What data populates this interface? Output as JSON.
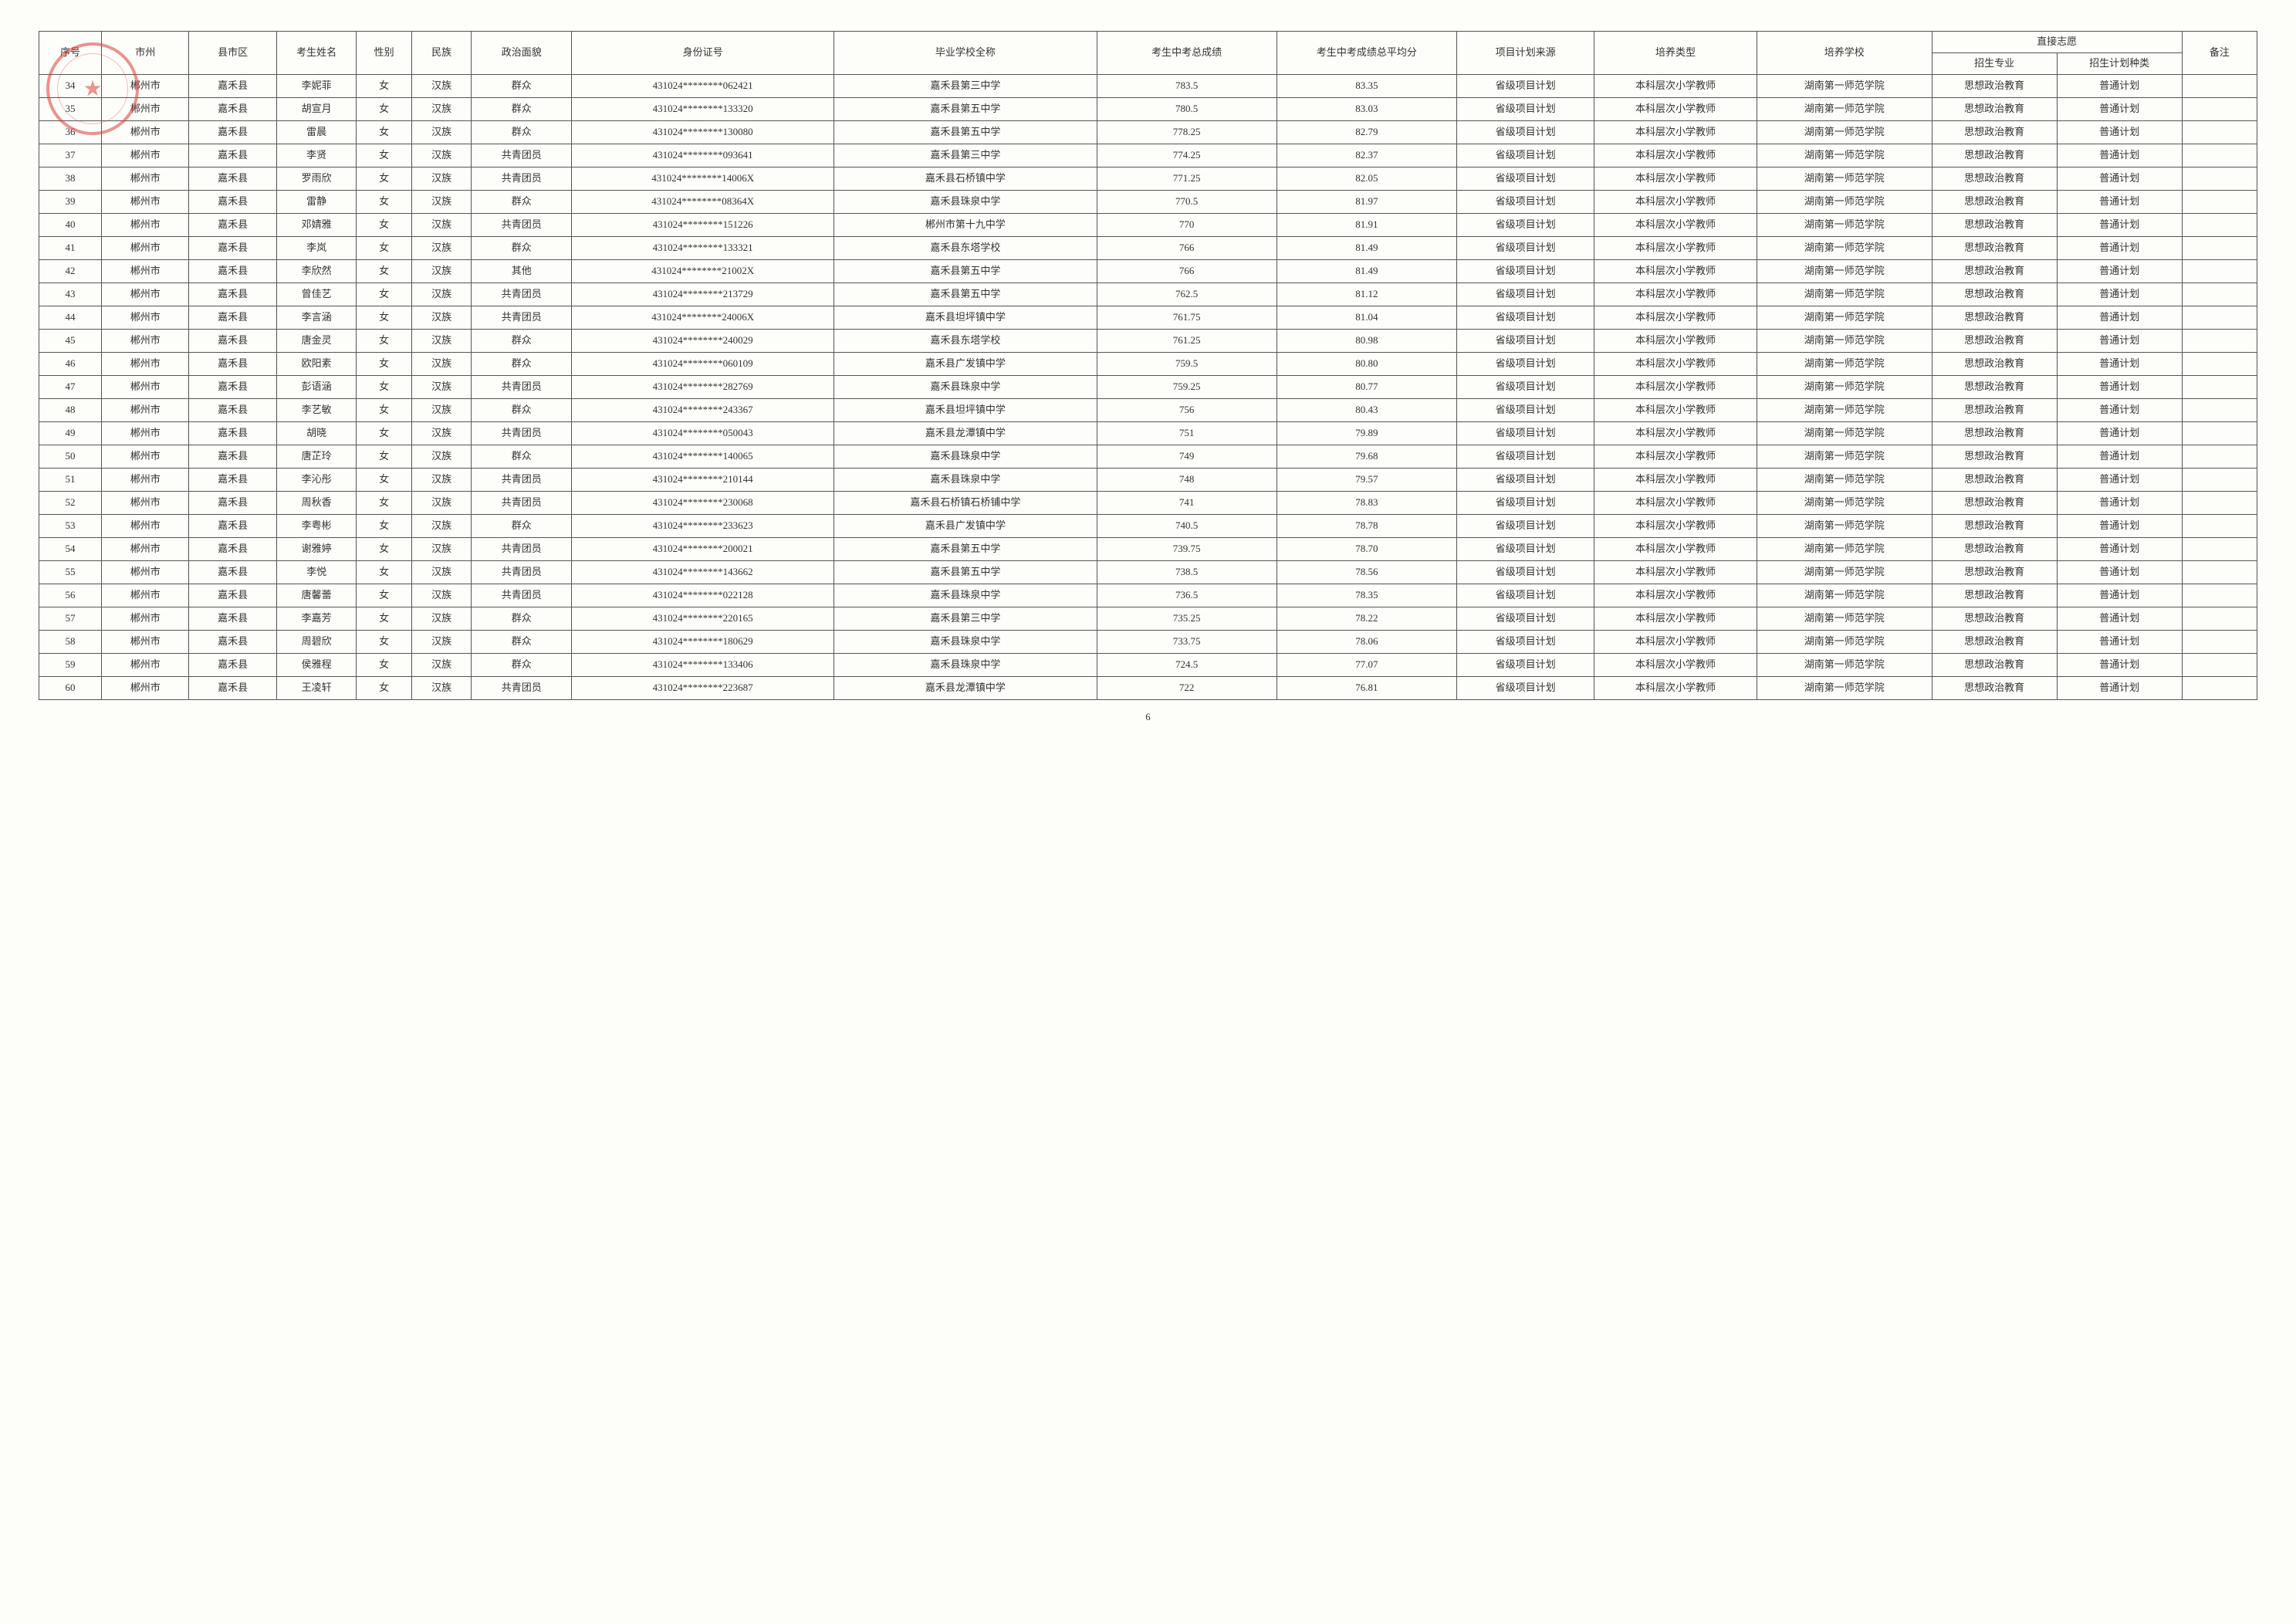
{
  "headers": {
    "seq": "序号",
    "city": "市州",
    "county": "县市区",
    "name": "考生姓名",
    "sex": "性别",
    "ethnic": "民族",
    "pol": "政治面貌",
    "id": "身份证号",
    "school": "毕业学校全称",
    "score": "考生中考总成绩",
    "avg": "考生中考成绩总平均分",
    "src": "项目计划来源",
    "train": "培养类型",
    "inst": "培养学校",
    "direct": "直接志愿",
    "major": "招生专业",
    "plan": "招生计划种类",
    "note": "备注"
  },
  "common": {
    "city": "郴州市",
    "county": "嘉禾县",
    "sex": "女",
    "ethnic": "汉族",
    "src": "省级项目计划",
    "train": "本科层次小学教师",
    "inst": "湖南第一师范学院",
    "major": "思想政治教育",
    "plan": "普通计划"
  },
  "rows": [
    {
      "seq": "34",
      "name": "李妮菲",
      "pol": "群众",
      "id": "431024********062421",
      "school": "嘉禾县第三中学",
      "score": "783.5",
      "avg": "83.35"
    },
    {
      "seq": "35",
      "name": "胡宣月",
      "pol": "群众",
      "id": "431024********133320",
      "school": "嘉禾县第五中学",
      "score": "780.5",
      "avg": "83.03"
    },
    {
      "seq": "36",
      "name": "雷晨",
      "pol": "群众",
      "id": "431024********130080",
      "school": "嘉禾县第五中学",
      "score": "778.25",
      "avg": "82.79"
    },
    {
      "seq": "37",
      "name": "李贤",
      "pol": "共青团员",
      "id": "431024********093641",
      "school": "嘉禾县第三中学",
      "score": "774.25",
      "avg": "82.37"
    },
    {
      "seq": "38",
      "name": "罗雨欣",
      "pol": "共青团员",
      "id": "431024********14006X",
      "school": "嘉禾县石桥镇中学",
      "score": "771.25",
      "avg": "82.05"
    },
    {
      "seq": "39",
      "name": "雷静",
      "pol": "群众",
      "id": "431024********08364X",
      "school": "嘉禾县珠泉中学",
      "score": "770.5",
      "avg": "81.97"
    },
    {
      "seq": "40",
      "name": "邓婧雅",
      "pol": "共青团员",
      "id": "431024********151226",
      "school": "郴州市第十九中学",
      "score": "770",
      "avg": "81.91"
    },
    {
      "seq": "41",
      "name": "李岚",
      "pol": "群众",
      "id": "431024********133321",
      "school": "嘉禾县东塔学校",
      "score": "766",
      "avg": "81.49"
    },
    {
      "seq": "42",
      "name": "李欣然",
      "pol": "其他",
      "id": "431024********21002X",
      "school": "嘉禾县第五中学",
      "score": "766",
      "avg": "81.49"
    },
    {
      "seq": "43",
      "name": "曾佳艺",
      "pol": "共青团员",
      "id": "431024********213729",
      "school": "嘉禾县第五中学",
      "score": "762.5",
      "avg": "81.12"
    },
    {
      "seq": "44",
      "name": "李言涵",
      "pol": "共青团员",
      "id": "431024********24006X",
      "school": "嘉禾县坦坪镇中学",
      "score": "761.75",
      "avg": "81.04"
    },
    {
      "seq": "45",
      "name": "唐金灵",
      "pol": "群众",
      "id": "431024********240029",
      "school": "嘉禾县东塔学校",
      "score": "761.25",
      "avg": "80.98"
    },
    {
      "seq": "46",
      "name": "欧阳素",
      "pol": "群众",
      "id": "431024********060109",
      "school": "嘉禾县广发镇中学",
      "score": "759.5",
      "avg": "80.80"
    },
    {
      "seq": "47",
      "name": "彭语涵",
      "pol": "共青团员",
      "id": "431024********282769",
      "school": "嘉禾县珠泉中学",
      "score": "759.25",
      "avg": "80.77"
    },
    {
      "seq": "48",
      "name": "李艺敏",
      "pol": "群众",
      "id": "431024********243367",
      "school": "嘉禾县坦坪镇中学",
      "score": "756",
      "avg": "80.43"
    },
    {
      "seq": "49",
      "name": "胡晓",
      "pol": "共青团员",
      "id": "431024********050043",
      "school": "嘉禾县龙潭镇中学",
      "score": "751",
      "avg": "79.89"
    },
    {
      "seq": "50",
      "name": "唐芷玲",
      "pol": "群众",
      "id": "431024********140065",
      "school": "嘉禾县珠泉中学",
      "score": "749",
      "avg": "79.68"
    },
    {
      "seq": "51",
      "name": "李沁彤",
      "pol": "共青团员",
      "id": "431024********210144",
      "school": "嘉禾县珠泉中学",
      "score": "748",
      "avg": "79.57"
    },
    {
      "seq": "52",
      "name": "周秋香",
      "pol": "共青团员",
      "id": "431024********230068",
      "school": "嘉禾县石桥镇石桥铺中学",
      "score": "741",
      "avg": "78.83"
    },
    {
      "seq": "53",
      "name": "李粤彬",
      "pol": "群众",
      "id": "431024********233623",
      "school": "嘉禾县广发镇中学",
      "score": "740.5",
      "avg": "78.78"
    },
    {
      "seq": "54",
      "name": "谢雅婷",
      "pol": "共青团员",
      "id": "431024********200021",
      "school": "嘉禾县第五中学",
      "score": "739.75",
      "avg": "78.70"
    },
    {
      "seq": "55",
      "name": "李悦",
      "pol": "共青团员",
      "id": "431024********143662",
      "school": "嘉禾县第五中学",
      "score": "738.5",
      "avg": "78.56"
    },
    {
      "seq": "56",
      "name": "唐馨蕾",
      "pol": "共青团员",
      "id": "431024********022128",
      "school": "嘉禾县珠泉中学",
      "score": "736.5",
      "avg": "78.35"
    },
    {
      "seq": "57",
      "name": "李嘉芳",
      "pol": "群众",
      "id": "431024********220165",
      "school": "嘉禾县第三中学",
      "score": "735.25",
      "avg": "78.22"
    },
    {
      "seq": "58",
      "name": "周碧欣",
      "pol": "群众",
      "id": "431024********180629",
      "school": "嘉禾县珠泉中学",
      "score": "733.75",
      "avg": "78.06"
    },
    {
      "seq": "59",
      "name": "侯雅程",
      "pol": "群众",
      "id": "431024********133406",
      "school": "嘉禾县珠泉中学",
      "score": "724.5",
      "avg": "77.07"
    },
    {
      "seq": "60",
      "name": "王凌轩",
      "pol": "共青团员",
      "id": "431024********223687",
      "school": "嘉禾县龙潭镇中学",
      "score": "722",
      "avg": "76.81"
    }
  ],
  "pageNumber": "6"
}
